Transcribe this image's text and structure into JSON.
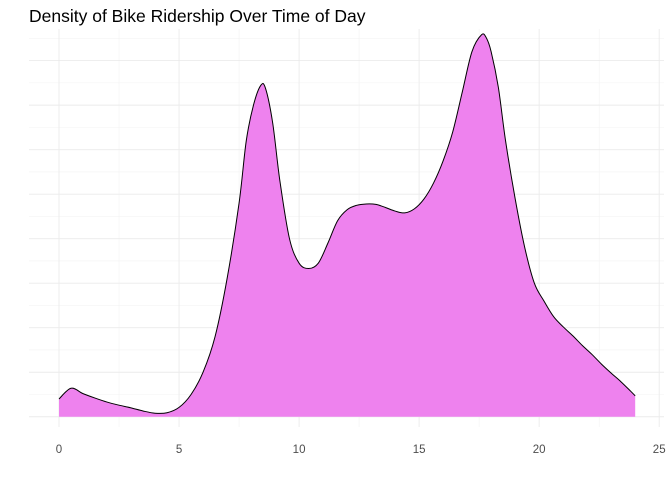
{
  "chart_data": {
    "type": "area",
    "title": "Density of Bike Ridership Over Time of Day",
    "xlabel": "",
    "ylabel": "",
    "xlim": [
      -1.25,
      25.2
    ],
    "ylim": [
      -0.0023,
      0.0871
    ],
    "x_ticks": [
      0,
      5,
      10,
      15,
      20,
      25
    ],
    "x_tick_labels": [
      "0",
      "5",
      "10",
      "15",
      "20",
      "25"
    ],
    "y_axis_labels_shown": false,
    "grid": true,
    "legend": "none",
    "fill_color": "#EE82EE",
    "line_color": "#000000",
    "series": [
      {
        "x": [
          0,
          0.5,
          1.0,
          1.5,
          2.0,
          2.5,
          3.0,
          3.5,
          4.0,
          4.5,
          5.0,
          5.5,
          6.0,
          6.5,
          7.0,
          7.5,
          7.8,
          8.1,
          8.4,
          8.6,
          8.9,
          9.2,
          9.6,
          10.0,
          10.4,
          10.8,
          11.2,
          11.6,
          12.0,
          12.4,
          12.8,
          13.2,
          13.6,
          14.0,
          14.4,
          14.8,
          15.2,
          15.6,
          16.0,
          16.4,
          16.8,
          17.2,
          17.6,
          17.8,
          18.0,
          18.3,
          18.6,
          19.0,
          19.4,
          19.8,
          20.2,
          20.6,
          21.0,
          21.4,
          21.8,
          22.2,
          22.6,
          23.0,
          23.4,
          23.8,
          24.0
        ],
        "y": [
          0.004,
          0.0064,
          0.0052,
          0.0042,
          0.0033,
          0.0026,
          0.002,
          0.0013,
          0.0008,
          0.0009,
          0.0021,
          0.005,
          0.01,
          0.018,
          0.031,
          0.048,
          0.062,
          0.07,
          0.0744,
          0.0738,
          0.066,
          0.053,
          0.04,
          0.0345,
          0.0333,
          0.0345,
          0.039,
          0.044,
          0.0465,
          0.0475,
          0.0478,
          0.0477,
          0.047,
          0.0462,
          0.0458,
          0.0467,
          0.0489,
          0.0525,
          0.0575,
          0.064,
          0.073,
          0.082,
          0.0858,
          0.0851,
          0.082,
          0.074,
          0.062,
          0.049,
          0.038,
          0.03,
          0.026,
          0.0225,
          0.0202,
          0.0182,
          0.016,
          0.014,
          0.0118,
          0.0098,
          0.0079,
          0.0058,
          0.0047
        ]
      }
    ]
  }
}
